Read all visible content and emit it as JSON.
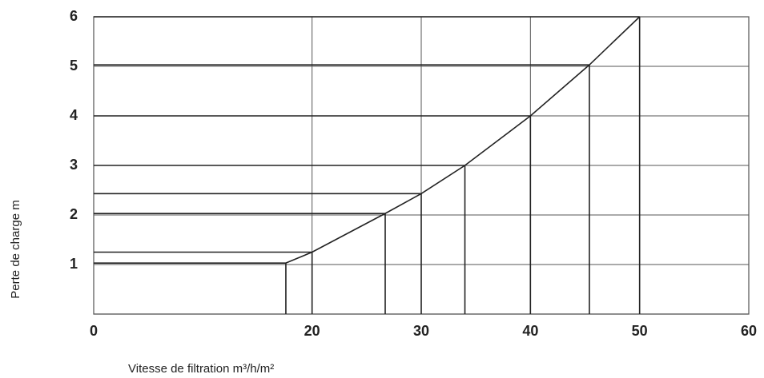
{
  "chart_data": {
    "type": "line",
    "x_label": "Vitesse de filtration m³/h/m²",
    "y_label": "Perte de charge m",
    "x": [
      17.6,
      20,
      26.7,
      30,
      34,
      40,
      45.4,
      50
    ],
    "values": [
      1.03,
      1.25,
      2.03,
      2.43,
      3.0,
      4.0,
      5.03,
      6.0
    ],
    "color": "#222222",
    "xlim": [
      0,
      60
    ],
    "xticks": [
      0,
      20,
      30,
      40,
      50,
      60
    ],
    "ylim": [
      0,
      6
    ],
    "yticks": [
      1,
      2,
      3,
      4,
      5,
      6
    ],
    "grid": true,
    "drop_lines": true
  }
}
